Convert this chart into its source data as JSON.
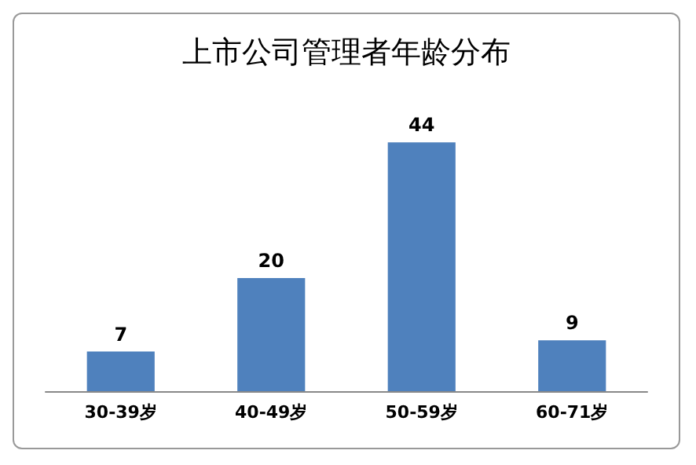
{
  "chart_data": {
    "type": "bar",
    "title": "上市公司管理者年龄分布",
    "categories": [
      "30-39岁",
      "40-49岁",
      "50-59岁",
      "60-71岁"
    ],
    "values": [
      7,
      20,
      44,
      9
    ],
    "color": "#4f81bd",
    "data_labels": true
  }
}
